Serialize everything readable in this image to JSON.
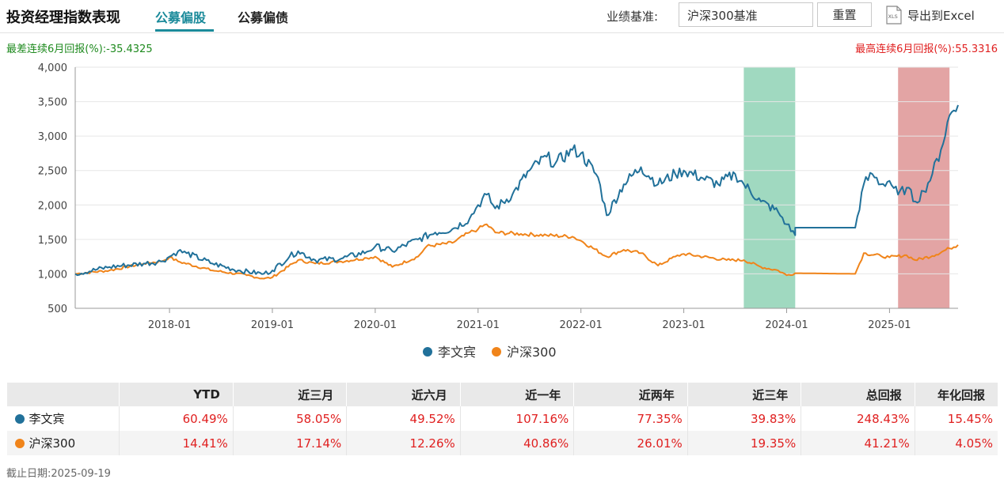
{
  "header": {
    "title": "投资经理指数表现",
    "tabs": [
      {
        "label": "公募偏股",
        "active": true
      },
      {
        "label": "公募偏债",
        "active": false
      }
    ],
    "benchmark_label": "业绩基准:",
    "benchmark_value": "沪深300基准",
    "reset_label": "重置",
    "export_label": "导出到Excel",
    "export_icon_text": "XLS"
  },
  "stats": {
    "worst": "最差连续6月回报(%):-35.4325",
    "best": "最高连续6月回报(%):55.3316"
  },
  "colors": {
    "manager": "#21719a",
    "benchmark": "#f0841a",
    "worst_band": "#9bd7bd",
    "best_band": "#e09a9a"
  },
  "chart_data": {
    "type": "line",
    "x_range": [
      "2017-02",
      "2025-09"
    ],
    "x_ticks": [
      "2018-01",
      "2019-01",
      "2020-01",
      "2021-01",
      "2022-01",
      "2023-01",
      "2024-01",
      "2025-01"
    ],
    "y_ticks": [
      "4,000",
      "3,500",
      "3,000",
      "2,500",
      "2,000",
      "1,500",
      "1,000",
      "500"
    ],
    "ylim": [
      500,
      4000
    ],
    "highlight_bands": [
      {
        "name": "worst-6m",
        "start": "2023-08",
        "end": "2024-02"
      },
      {
        "name": "best-6m",
        "start": "2025-02",
        "end": "2025-08"
      }
    ],
    "series": [
      {
        "name": "李文宾",
        "points": [
          [
            "2017-02",
            1000
          ],
          [
            "2017-06",
            1100
          ],
          [
            "2017-10",
            1150
          ],
          [
            "2017-12",
            1180
          ],
          [
            "2018-01",
            1250
          ],
          [
            "2018-02",
            1330
          ],
          [
            "2018-03",
            1300
          ],
          [
            "2018-06",
            1150
          ],
          [
            "2018-09",
            1050
          ],
          [
            "2018-12",
            1000
          ],
          [
            "2019-01",
            1050
          ],
          [
            "2019-03",
            1250
          ],
          [
            "2019-04",
            1330
          ],
          [
            "2019-06",
            1200
          ],
          [
            "2019-09",
            1220
          ],
          [
            "2019-12",
            1320
          ],
          [
            "2020-01",
            1400
          ],
          [
            "2020-03",
            1330
          ],
          [
            "2020-06",
            1500
          ],
          [
            "2020-08",
            1600
          ],
          [
            "2020-10",
            1650
          ],
          [
            "2020-12",
            1800
          ],
          [
            "2021-01",
            2000
          ],
          [
            "2021-02",
            2150
          ],
          [
            "2021-03",
            1950
          ],
          [
            "2021-05",
            2150
          ],
          [
            "2021-07",
            2500
          ],
          [
            "2021-09",
            2700
          ],
          [
            "2021-10",
            2600
          ],
          [
            "2021-12",
            2800
          ],
          [
            "2022-01",
            2750
          ],
          [
            "2022-03",
            2400
          ],
          [
            "2022-04",
            1850
          ],
          [
            "2022-06",
            2300
          ],
          [
            "2022-08",
            2550
          ],
          [
            "2022-10",
            2300
          ],
          [
            "2022-12",
            2450
          ],
          [
            "2023-01",
            2500
          ],
          [
            "2023-03",
            2400
          ],
          [
            "2023-05",
            2300
          ],
          [
            "2023-07",
            2450
          ],
          [
            "2023-08",
            2300
          ],
          [
            "2023-10",
            2050
          ],
          [
            "2023-12",
            1900
          ],
          [
            "2024-01",
            1720
          ],
          [
            "2024-02",
            1560
          ],
          [
            "2024-02",
            1670
          ],
          [
            "2024-09",
            1670
          ],
          [
            "2024-10",
            2300
          ],
          [
            "2024-11",
            2450
          ],
          [
            "2024-12",
            2300
          ],
          [
            "2025-01",
            2350
          ],
          [
            "2025-02",
            2150
          ],
          [
            "2025-03",
            2250
          ],
          [
            "2025-04",
            2050
          ],
          [
            "2025-05",
            2200
          ],
          [
            "2025-06",
            2450
          ],
          [
            "2025-07",
            2800
          ],
          [
            "2025-08",
            3300
          ],
          [
            "2025-09",
            3450
          ]
        ]
      },
      {
        "name": "沪深300",
        "points": [
          [
            "2017-02",
            1000
          ],
          [
            "2017-06",
            1050
          ],
          [
            "2017-10",
            1150
          ],
          [
            "2017-12",
            1180
          ],
          [
            "2018-01",
            1240
          ],
          [
            "2018-02",
            1180
          ],
          [
            "2018-06",
            1050
          ],
          [
            "2018-10",
            980
          ],
          [
            "2018-12",
            930
          ],
          [
            "2019-01",
            950
          ],
          [
            "2019-04",
            1200
          ],
          [
            "2019-06",
            1150
          ],
          [
            "2019-09",
            1180
          ],
          [
            "2019-12",
            1230
          ],
          [
            "2020-01",
            1250
          ],
          [
            "2020-03",
            1100
          ],
          [
            "2020-06",
            1250
          ],
          [
            "2020-07",
            1400
          ],
          [
            "2020-10",
            1450
          ],
          [
            "2020-12",
            1600
          ],
          [
            "2021-01",
            1650
          ],
          [
            "2021-02",
            1720
          ],
          [
            "2021-03",
            1600
          ],
          [
            "2021-06",
            1580
          ],
          [
            "2021-09",
            1560
          ],
          [
            "2021-12",
            1540
          ],
          [
            "2022-01",
            1480
          ],
          [
            "2022-04",
            1250
          ],
          [
            "2022-06",
            1350
          ],
          [
            "2022-08",
            1300
          ],
          [
            "2022-10",
            1120
          ],
          [
            "2022-12",
            1250
          ],
          [
            "2023-01",
            1290
          ],
          [
            "2023-06",
            1200
          ],
          [
            "2023-08",
            1200
          ],
          [
            "2023-10",
            1100
          ],
          [
            "2023-12",
            1050
          ],
          [
            "2024-01",
            980
          ],
          [
            "2024-02",
            1010
          ],
          [
            "2024-09",
            1000
          ],
          [
            "2024-10",
            1300
          ],
          [
            "2024-12",
            1260
          ],
          [
            "2025-01",
            1240
          ],
          [
            "2025-03",
            1270
          ],
          [
            "2025-04",
            1200
          ],
          [
            "2025-06",
            1260
          ],
          [
            "2025-08",
            1370
          ],
          [
            "2025-09",
            1420
          ]
        ]
      }
    ]
  },
  "table": {
    "headers": [
      "",
      "YTD",
      "近三月",
      "近六月",
      "近一年",
      "近两年",
      "近三年",
      "总回报",
      "年化回报"
    ],
    "rows": [
      {
        "name": "李文宾",
        "values": [
          "60.49%",
          "58.05%",
          "49.52%",
          "107.16%",
          "77.35%",
          "39.83%",
          "248.43%",
          "15.45%"
        ]
      },
      {
        "name": "沪深300",
        "values": [
          "14.41%",
          "17.14%",
          "12.26%",
          "40.86%",
          "26.01%",
          "19.35%",
          "41.21%",
          "4.05%"
        ]
      }
    ]
  },
  "footer": "截止日期:2025-09-19"
}
